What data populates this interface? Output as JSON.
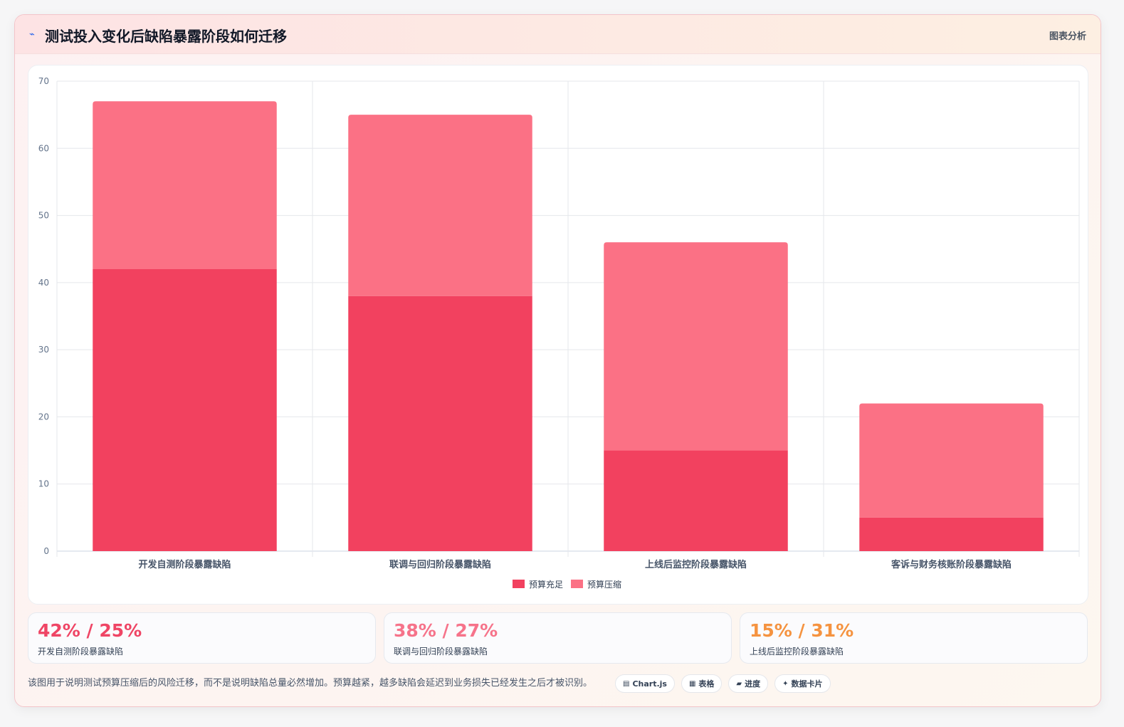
{
  "header": {
    "icon": "trend-icon",
    "title": "测试投入变化后缺陷暴露阶段如何迁移",
    "tag": "图表分析"
  },
  "colors": {
    "series_a": "#f2415f",
    "series_b": "#fb7185",
    "stat_1": "#ef4565",
    "stat_2": "#f6738a",
    "stat_3": "#f59340"
  },
  "chart_data": {
    "type": "bar",
    "stacked": true,
    "categories": [
      "开发自测阶段暴露缺陷",
      "联调与回归阶段暴露缺陷",
      "上线后监控阶段暴露缺陷",
      "客诉与财务核账阶段暴露缺陷"
    ],
    "series": [
      {
        "name": "预算充足",
        "values": [
          42,
          38,
          15,
          5
        ],
        "color": "#f2415f"
      },
      {
        "name": "预算压缩",
        "values": [
          25,
          27,
          31,
          17
        ],
        "color": "#fb7185"
      }
    ],
    "ylim": [
      0,
      70
    ],
    "yticks": [
      0,
      10,
      20,
      30,
      40,
      50,
      60,
      70
    ],
    "grid": true,
    "legend": "bottom"
  },
  "stats": [
    {
      "value": "42% / 25%",
      "label": "开发自测阶段暴露缺陷"
    },
    {
      "value": "38% / 27%",
      "label": "联调与回归阶段暴露缺陷"
    },
    {
      "value": "15% / 31%",
      "label": "上线后监控阶段暴露缺陷"
    }
  ],
  "footnote": "该图用于说明测试预算压缩后的风险迁移，而不是说明缺陷总量必然增加。预算越紧，越多缺陷会延迟到业务损失已经发生之后才被识别。",
  "chips": [
    {
      "icon": "chart-icon",
      "glyph": "▤",
      "label": "Chart.js"
    },
    {
      "icon": "table-icon",
      "glyph": "▦",
      "label": "表格"
    },
    {
      "icon": "progress-icon",
      "glyph": "▰",
      "label": "进度"
    },
    {
      "icon": "sparkle-icon",
      "glyph": "✦",
      "label": "数据卡片"
    }
  ]
}
